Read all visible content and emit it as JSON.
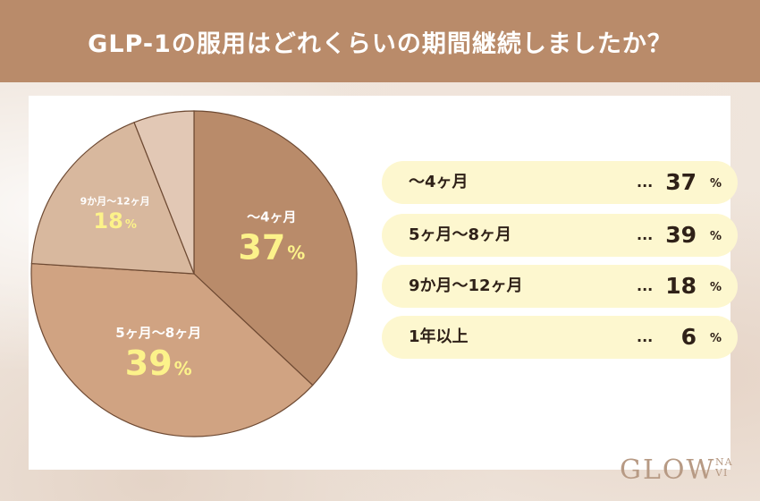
{
  "title": "GLP-1の服用はどれくらいの期間継続しましたか？",
  "logo": {
    "main": "GLOW",
    "sub_top": "NA",
    "sub_bottom": "VI"
  },
  "unit": "%",
  "dots": "...",
  "colors": {
    "header": "#b98b6a",
    "slice_1": "#b98b6a",
    "slice_2": "#d0a382",
    "slice_3": "#d8b89e",
    "slice_4": "#e2c8b5",
    "highlight_text": "#fcf28a",
    "legend_bg": "#fdf7cf"
  },
  "chart_data": {
    "type": "pie",
    "title": "GLP-1の服用はどれくらいの期間継続しましたか？",
    "categories": [
      "〜4ヶ月",
      "5ヶ月〜8ヶ月",
      "9か月〜12ヶ月",
      "1年以上"
    ],
    "values": [
      37,
      39,
      18,
      6
    ],
    "unit": "%",
    "legend": "right"
  }
}
